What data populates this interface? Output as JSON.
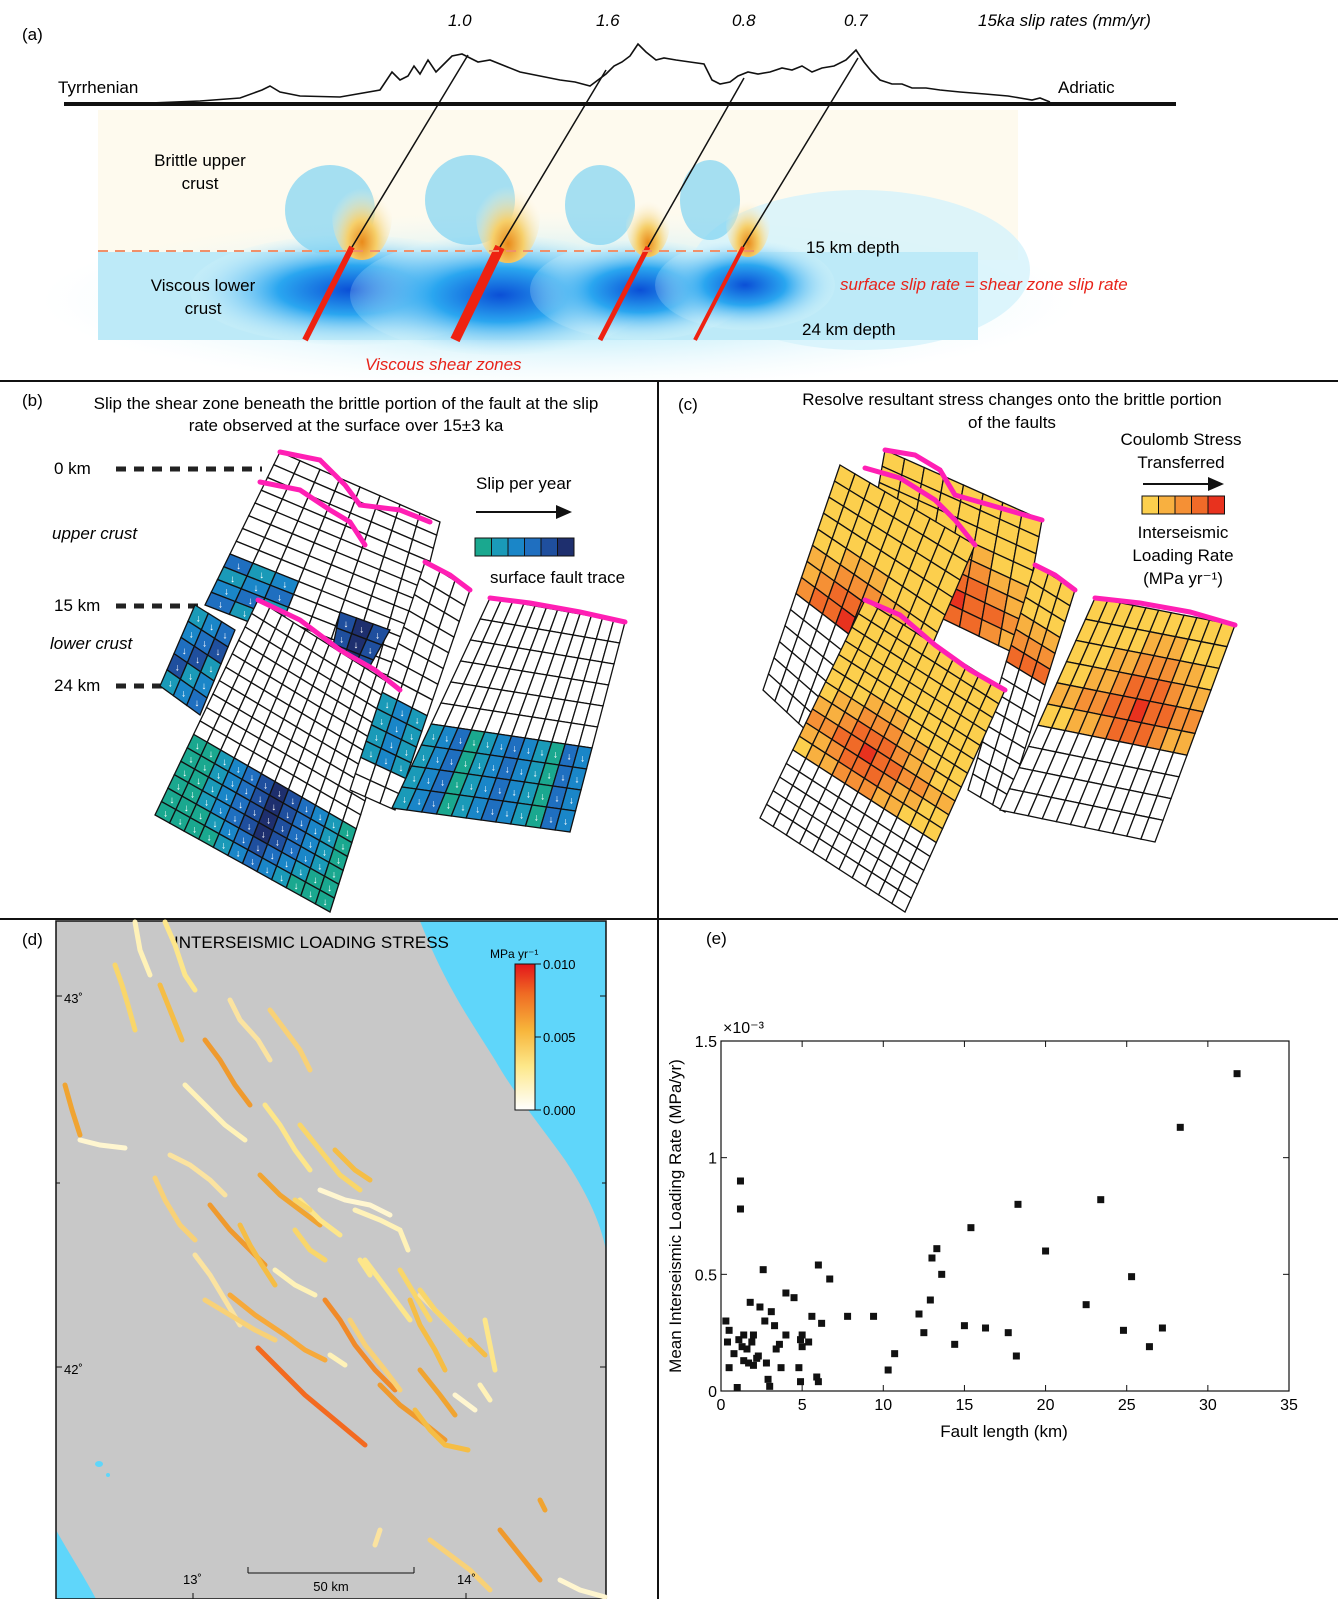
{
  "panel_a": {
    "label": "(a)",
    "slip_rates": [
      "1.0",
      "1.6",
      "0.8",
      "0.7"
    ],
    "slip_rates_caption": "15ka slip rates (mm/yr)",
    "left_sea": "Tyrrhenian",
    "right_sea": "Adriatic",
    "brittle_label": [
      "Brittle upper",
      "crust"
    ],
    "viscous_label": [
      "Viscous lower",
      "crust"
    ],
    "depth_15": "15 km depth",
    "depth_24": "24 km depth",
    "equality_note": "surface slip rate = shear zone slip rate",
    "shear_zones_label": "Viscous shear zones",
    "colors": {
      "shear_zone": "#ee2211",
      "note": "#e8231a"
    }
  },
  "panel_b": {
    "label": "(b)",
    "title": [
      "Slip the shear zone beneath the brittle portion of the fault at the slip",
      "rate observed at the surface over 15±3 ka"
    ],
    "depths": [
      "0 km",
      "15 km",
      "24 km"
    ],
    "zones": [
      "upper crust",
      "lower crust"
    ],
    "legend_title": "Slip per year",
    "trace_label": "surface fault trace",
    "legend_colors": [
      "#1aa88f",
      "#1a9ab8",
      "#1a86c8",
      "#1f6fc0",
      "#1f4f9e",
      "#1e2f6e"
    ]
  },
  "panel_c": {
    "label": "(c)",
    "title": [
      "Resolve resultant stress changes onto the brittle portion",
      "of the faults"
    ],
    "legend_title": [
      "Coulomb Stress",
      "Transferred"
    ],
    "legend_caption": [
      "Interseismic",
      "Loading Rate",
      "(MPa yr⁻¹)"
    ],
    "legend_colors": [
      "#fccf4d",
      "#f8b040",
      "#f59035",
      "#f06a28",
      "#e8321e"
    ]
  },
  "panel_d": {
    "label": "(d)",
    "title": "INTERSEISMIC LOADING STRESS",
    "colorbar_unit": "MPa yr⁻¹",
    "colorbar_ticks": [
      "0.010",
      "0.005",
      "0.000"
    ],
    "lat_labels": [
      "43˚",
      "42˚"
    ],
    "lon_labels": [
      "13˚",
      "14˚"
    ],
    "scale_label": "50 km",
    "colors": {
      "land": "#c8c8c8",
      "sea": "#5fd6fa"
    }
  },
  "panel_e": {
    "label": "(e)",
    "chart_data": {
      "type": "scatter",
      "xlabel": "Fault length (km)",
      "ylabel": "Mean Interseismic Loading Rate (MPa/yr)",
      "y_multiplier": "×10⁻³",
      "xlim": [
        0,
        35
      ],
      "ylim": [
        0,
        1.5
      ],
      "xticks": [
        "0",
        "5",
        "10",
        "15",
        "20",
        "25",
        "30",
        "35"
      ],
      "yticks": [
        "0",
        "0.5",
        "1",
        "1.5"
      ],
      "points": [
        [
          0.3,
          0.3
        ],
        [
          0.4,
          0.21
        ],
        [
          0.5,
          0.26
        ],
        [
          0.5,
          0.1
        ],
        [
          0.8,
          0.16
        ],
        [
          1.0,
          0.015
        ],
        [
          1.1,
          0.22
        ],
        [
          1.2,
          0.9
        ],
        [
          1.2,
          0.78
        ],
        [
          1.3,
          0.19
        ],
        [
          1.4,
          0.24
        ],
        [
          1.4,
          0.13
        ],
        [
          1.6,
          0.18
        ],
        [
          1.7,
          0.12
        ],
        [
          1.8,
          0.38
        ],
        [
          1.9,
          0.21
        ],
        [
          2.0,
          0.24
        ],
        [
          2.0,
          0.11
        ],
        [
          2.2,
          0.14
        ],
        [
          2.3,
          0.15
        ],
        [
          2.4,
          0.36
        ],
        [
          2.6,
          0.52
        ],
        [
          2.7,
          0.3
        ],
        [
          2.8,
          0.12
        ],
        [
          2.9,
          0.05
        ],
        [
          3.0,
          0.02
        ],
        [
          3.1,
          0.34
        ],
        [
          3.3,
          0.28
        ],
        [
          3.4,
          0.18
        ],
        [
          3.6,
          0.2
        ],
        [
          3.7,
          0.1
        ],
        [
          4.0,
          0.24
        ],
        [
          4.0,
          0.42
        ],
        [
          4.5,
          0.4
        ],
        [
          4.8,
          0.1
        ],
        [
          4.9,
          0.04
        ],
        [
          4.9,
          0.22
        ],
        [
          5.0,
          0.24
        ],
        [
          5.0,
          0.19
        ],
        [
          5.4,
          0.21
        ],
        [
          5.6,
          0.32
        ],
        [
          5.9,
          0.06
        ],
        [
          6.0,
          0.04
        ],
        [
          6.0,
          0.54
        ],
        [
          6.2,
          0.29
        ],
        [
          6.7,
          0.48
        ],
        [
          7.8,
          0.32
        ],
        [
          9.4,
          0.32
        ],
        [
          10.3,
          0.09
        ],
        [
          10.7,
          0.16
        ],
        [
          12.2,
          0.33
        ],
        [
          12.5,
          0.25
        ],
        [
          12.9,
          0.39
        ],
        [
          13.0,
          0.57
        ],
        [
          13.3,
          0.61
        ],
        [
          13.6,
          0.5
        ],
        [
          14.4,
          0.2
        ],
        [
          15.0,
          0.28
        ],
        [
          15.4,
          0.7
        ],
        [
          16.3,
          0.27
        ],
        [
          17.7,
          0.25
        ],
        [
          18.2,
          0.15
        ],
        [
          18.3,
          0.8
        ],
        [
          20.0,
          0.6
        ],
        [
          22.5,
          0.37
        ],
        [
          23.4,
          0.82
        ],
        [
          24.8,
          0.26
        ],
        [
          25.3,
          0.49
        ],
        [
          26.4,
          0.19
        ],
        [
          27.2,
          0.27
        ],
        [
          28.3,
          1.13
        ],
        [
          31.8,
          1.36
        ]
      ]
    }
  }
}
